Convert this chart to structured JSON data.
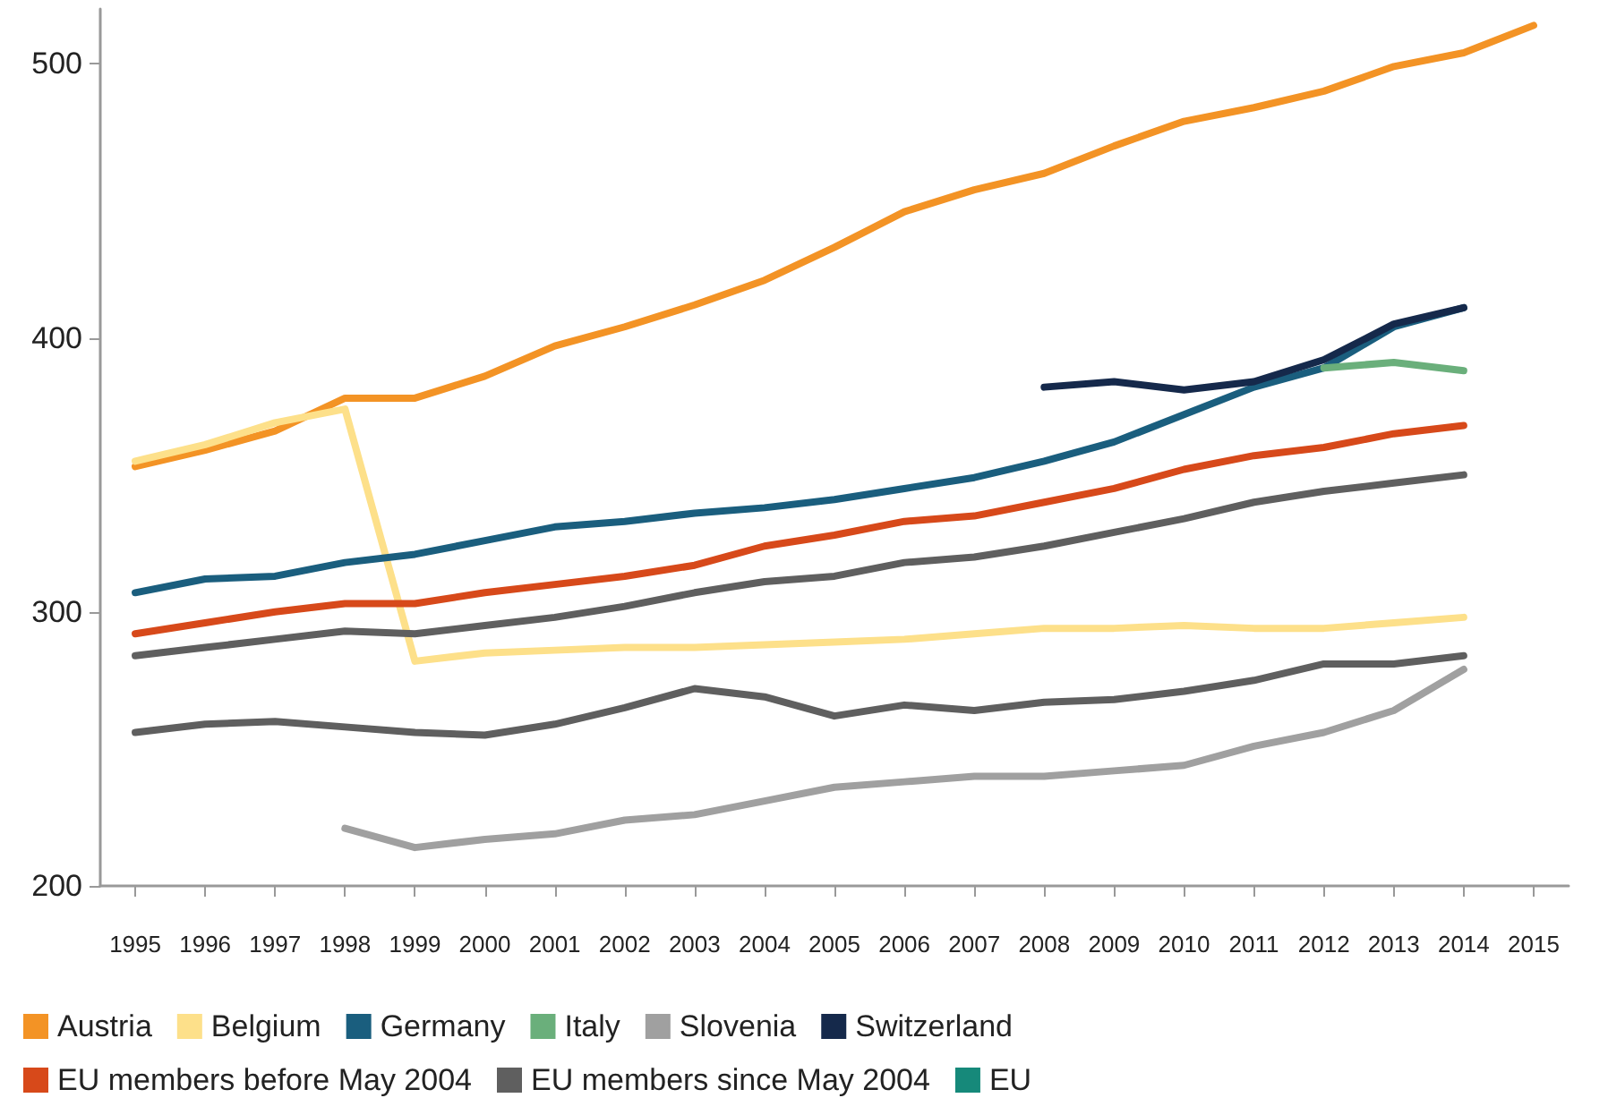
{
  "chart_data": {
    "type": "line",
    "categories": [
      "1995",
      "1996",
      "1997",
      "1998",
      "1999",
      "2000",
      "2001",
      "2002",
      "2003",
      "2004",
      "2005",
      "2006",
      "2007",
      "2008",
      "2009",
      "2010",
      "2011",
      "2012",
      "2013",
      "2014",
      "2015"
    ],
    "series": [
      {
        "name": "Austria",
        "color": "#f39325",
        "values": [
          353,
          359,
          366,
          378,
          378,
          386,
          397,
          404,
          412,
          421,
          433,
          446,
          454,
          460,
          470,
          479,
          484,
          490,
          499,
          504,
          514
        ]
      },
      {
        "name": "Belgium",
        "color": "#fde08a",
        "values": [
          355,
          361,
          369,
          374,
          282,
          285,
          286,
          287,
          287,
          288,
          289,
          290,
          292,
          294,
          294,
          295,
          294,
          294,
          296,
          298,
          null
        ]
      },
      {
        "name": "Germany",
        "color": "#1a5e7e",
        "values": [
          307,
          312,
          313,
          318,
          321,
          326,
          331,
          333,
          336,
          338,
          341,
          345,
          349,
          355,
          362,
          372,
          382,
          389,
          404,
          411,
          null
        ]
      },
      {
        "name": "Italy",
        "color": "#6aaf7b",
        "values": [
          null,
          null,
          null,
          null,
          null,
          null,
          null,
          null,
          null,
          null,
          null,
          null,
          null,
          null,
          null,
          null,
          null,
          389,
          391,
          388,
          null
        ]
      },
      {
        "name": "Slovenia",
        "color": "#a0a0a0",
        "values": [
          null,
          null,
          null,
          221,
          214,
          217,
          219,
          224,
          226,
          231,
          236,
          238,
          240,
          240,
          242,
          244,
          251,
          256,
          264,
          279,
          null
        ]
      },
      {
        "name": "Switzerland",
        "color": "#15294b",
        "values": [
          null,
          null,
          null,
          null,
          null,
          null,
          null,
          null,
          null,
          null,
          null,
          null,
          null,
          382,
          384,
          381,
          384,
          392,
          405,
          411,
          null
        ]
      },
      {
        "name": "EU members before May 2004",
        "color": "#d7491a",
        "values": [
          292,
          296,
          300,
          303,
          303,
          307,
          310,
          313,
          317,
          324,
          328,
          333,
          335,
          340,
          345,
          352,
          357,
          360,
          365,
          368,
          null
        ]
      },
      {
        "name": "EU members since May 2004",
        "color": "#5f5f5f",
        "values": [
          256,
          259,
          260,
          258,
          256,
          255,
          259,
          265,
          272,
          269,
          262,
          266,
          264,
          267,
          268,
          271,
          275,
          281,
          281,
          284,
          null
        ]
      },
      {
        "name": "EU",
        "color": "#16897a",
        "values": [
          null,
          null,
          null,
          null,
          null,
          null,
          null,
          null,
          null,
          null,
          null,
          null,
          null,
          null,
          null,
          null,
          null,
          null,
          null,
          null,
          null
        ]
      },
      {
        "color": "#5f5f5f",
        "values": [
          284,
          287,
          290,
          293,
          292,
          295,
          298,
          302,
          307,
          311,
          313,
          318,
          320,
          324,
          329,
          334,
          340,
          344,
          347,
          350,
          null
        ]
      }
    ],
    "ylim": [
      200,
      520
    ],
    "yticks": [
      200,
      300,
      400,
      500
    ],
    "legend": "bottom",
    "marker": "none",
    "line_style": "solid"
  }
}
